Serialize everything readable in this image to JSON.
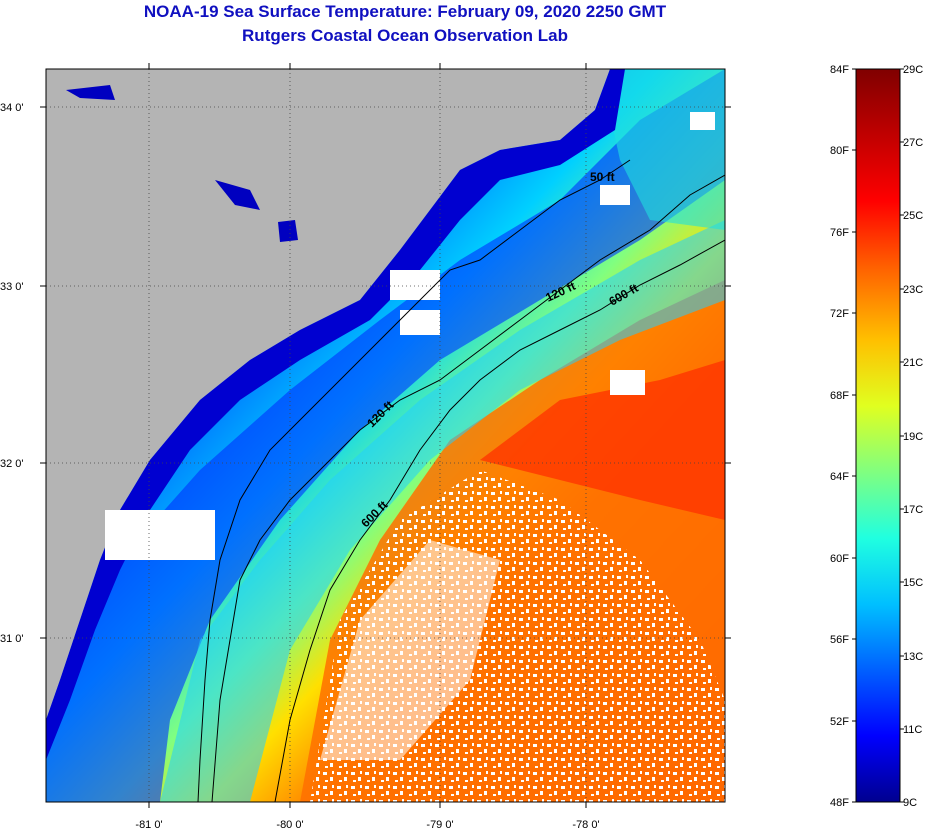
{
  "title": {
    "line1": "NOAA-19 Sea Surface Temperature:  February 09, 2020 2250 GMT",
    "line2": "Rutgers Coastal Ocean Observation Lab"
  },
  "axes": {
    "lat_labels": [
      "34 0'",
      "33 0'",
      "32 0'",
      "31 0'"
    ],
    "lon_labels": [
      "-81 0'",
      "-80 0'",
      "-79 0'",
      "-78 0'"
    ]
  },
  "contours": [
    {
      "label": "50 ft"
    },
    {
      "label": "120 ft"
    },
    {
      "label": "600 ft"
    },
    {
      "label": "120 ft"
    },
    {
      "label": "600 ft"
    }
  ],
  "colorbar": {
    "fahrenheit": [
      "84F",
      "80F",
      "76F",
      "72F",
      "68F",
      "64F",
      "60F",
      "56F",
      "52F",
      "48F"
    ],
    "celsius": [
      "29C",
      "27C",
      "25C",
      "23C",
      "21C",
      "19C",
      "17C",
      "15C",
      "13C",
      "11C",
      "9C"
    ],
    "colors": [
      "#00008f",
      "#0000ff",
      "#0060ff",
      "#00c0ff",
      "#20ffe0",
      "#80ff80",
      "#e0ff20",
      "#ffc000",
      "#ff6000",
      "#ff0000",
      "#c00000",
      "#800000"
    ]
  },
  "colors": {
    "land": "#b4b4b4",
    "title": "#1010c0",
    "cloud": "#ffffff"
  }
}
